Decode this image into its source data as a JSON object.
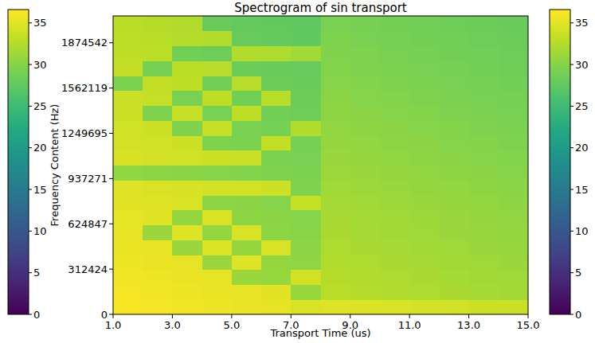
{
  "chart_data": {
    "type": "heatmap",
    "title": "Spectrogram of sin transport",
    "x_label": "Transport Time (us)",
    "y_label": "Frequency Content (Hz)",
    "xlim": [
      1,
      15
    ],
    "xticks": [
      {
        "value": 1,
        "label": "1.0"
      },
      {
        "value": 3,
        "label": "3.0"
      },
      {
        "value": 5,
        "label": "5.0"
      },
      {
        "value": 7,
        "label": "7.0"
      },
      {
        "value": 9,
        "label": "9.0"
      },
      {
        "value": 11,
        "label": "11.0"
      },
      {
        "value": 13,
        "label": "13.0"
      },
      {
        "value": 15,
        "label": "15.0"
      }
    ],
    "ylim": [
      0,
      2060000
    ],
    "yticks": [
      0,
      312424,
      624847,
      937271,
      1249695,
      1562119,
      1874542
    ],
    "x_edges": [
      1,
      2,
      3,
      4,
      5,
      6,
      7,
      8,
      9,
      10,
      11,
      12,
      13,
      14,
      15
    ],
    "y_edges": [
      0,
      103000,
      206000,
      309000,
      412000,
      515000,
      618000,
      721000,
      824000,
      927000,
      1030000,
      1133000,
      1236000,
      1339000,
      1442000,
      1545000,
      1648000,
      1751000,
      1854000,
      1957000,
      2060000
    ],
    "values": [
      [
        36.3,
        36.1,
        35.9,
        35.7,
        35.5,
        35.3,
        34.6,
        34.9,
        34.7,
        34.5,
        34.3,
        34.1,
        33.9,
        33.7
      ],
      [
        36.1,
        35.9,
        35.7,
        35.5,
        35.3,
        35.1,
        30.9,
        32.7,
        32.5,
        32.3,
        32.1,
        31.9,
        31.7,
        31.5
      ],
      [
        35.9,
        35.7,
        35.5,
        35.3,
        31.1,
        30.9,
        34.2,
        32.5,
        32.3,
        32.1,
        31.9,
        31.7,
        31.5,
        31.3
      ],
      [
        35.7,
        35.5,
        35.3,
        31.1,
        34.9,
        30.7,
        30.5,
        32.3,
        32.1,
        31.9,
        31.7,
        31.5,
        31.3,
        31.1
      ],
      [
        35.5,
        35.3,
        31.1,
        34.9,
        30.7,
        34.5,
        30.3,
        32.1,
        31.9,
        31.7,
        31.5,
        31.3,
        31.1,
        30.9
      ],
      [
        35.3,
        31.1,
        34.9,
        30.7,
        34.5,
        30.3,
        30.1,
        31.9,
        31.7,
        31.5,
        31.3,
        31.1,
        30.9,
        30.7
      ],
      [
        35.2,
        35.0,
        30.8,
        34.6,
        30.4,
        30.2,
        30.0,
        31.8,
        31.6,
        31.4,
        31.2,
        31.0,
        30.8,
        30.6
      ],
      [
        35.0,
        34.8,
        34.6,
        30.4,
        30.2,
        30.0,
        33.3,
        31.6,
        31.4,
        31.2,
        31.0,
        30.8,
        30.6,
        30.4
      ],
      [
        34.8,
        34.6,
        34.4,
        34.2,
        34.0,
        33.8,
        29.6,
        31.4,
        31.2,
        31.0,
        30.8,
        30.6,
        30.4,
        30.2
      ],
      [
        30.6,
        30.4,
        30.2,
        30.0,
        29.8,
        29.6,
        29.4,
        31.2,
        31.0,
        30.8,
        30.6,
        30.4,
        30.2,
        30.0
      ],
      [
        34.4,
        34.2,
        34.0,
        33.8,
        33.6,
        29.4,
        29.2,
        31.0,
        30.8,
        30.6,
        30.4,
        30.2,
        30.0,
        29.8
      ],
      [
        34.2,
        34.0,
        33.8,
        29.6,
        29.4,
        33.2,
        29.0,
        30.8,
        30.6,
        30.4,
        30.2,
        30.0,
        29.8,
        29.6
      ],
      [
        34.0,
        33.8,
        29.6,
        33.4,
        29.2,
        29.0,
        32.3,
        30.6,
        30.4,
        30.2,
        30.0,
        29.8,
        29.6,
        29.4
      ],
      [
        33.8,
        29.6,
        33.4,
        29.2,
        33.0,
        28.8,
        28.6,
        30.4,
        30.2,
        30.0,
        29.8,
        29.6,
        29.4,
        29.2
      ],
      [
        33.6,
        33.4,
        29.2,
        33.0,
        28.8,
        32.6,
        28.4,
        30.2,
        30.0,
        29.8,
        29.6,
        29.4,
        29.2,
        29.0
      ],
      [
        29.4,
        33.2,
        33.0,
        28.8,
        32.6,
        28.4,
        28.2,
        30.0,
        29.8,
        29.6,
        29.4,
        29.2,
        29.0,
        28.8
      ],
      [
        33.2,
        29.0,
        32.8,
        32.6,
        28.4,
        28.2,
        28.0,
        29.8,
        29.6,
        29.4,
        29.2,
        29.0,
        28.8,
        28.6
      ],
      [
        33.1,
        32.9,
        28.7,
        28.5,
        32.3,
        32.1,
        31.4,
        29.7,
        29.5,
        29.3,
        29.1,
        28.9,
        28.7,
        28.5
      ],
      [
        32.9,
        32.7,
        32.5,
        32.3,
        28.1,
        27.9,
        27.7,
        29.5,
        29.3,
        29.1,
        28.9,
        28.7,
        28.5,
        28.3
      ],
      [
        32.7,
        32.5,
        32.3,
        28.1,
        27.9,
        27.7,
        27.5,
        29.3,
        29.1,
        28.9,
        28.7,
        28.5,
        28.3,
        28.1
      ]
    ],
    "colorbar_range": [
      0,
      36.6
    ],
    "colorbar_ticks": [
      0,
      5,
      10,
      15,
      20,
      25,
      30,
      35
    ]
  }
}
